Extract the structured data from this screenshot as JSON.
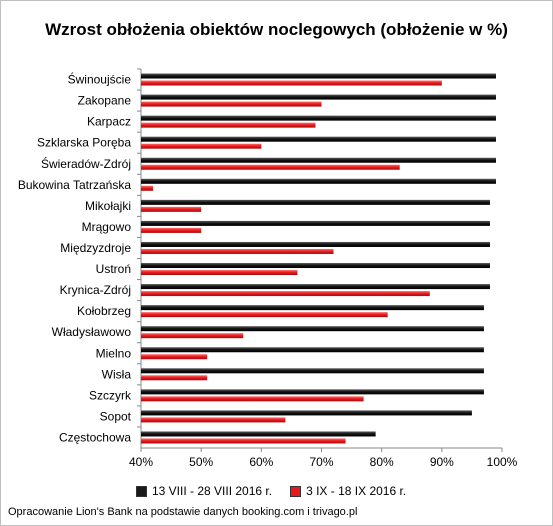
{
  "chart_data": {
    "type": "bar",
    "orientation": "horizontal",
    "title": "Wzrost obłożenia obiektów noclegowych (obłożenie w %)",
    "categories": [
      "Świnoujście",
      "Zakopane",
      "Karpacz",
      "Szklarska Poręba",
      "Świeradów-Zdrój",
      "Bukowina Tatrzańska",
      "Mikołajki",
      "Mrągowo",
      "Międzyzdroje",
      "Ustroń",
      "Krynica-Zdrój",
      "Kołobrzeg",
      "Władysławowo",
      "Mielno",
      "Wisła",
      "Szczyrk",
      "Sopot",
      "Częstochowa"
    ],
    "series": [
      {
        "name": "13 VIII - 28 VIII 2016 r.",
        "color": "#1a1a1a",
        "values": [
          99,
          99,
          99,
          99,
          99,
          99,
          98,
          98,
          98,
          98,
          98,
          97,
          97,
          97,
          97,
          97,
          95,
          79
        ]
      },
      {
        "name": "3 IX - 18 IX 2016 r.",
        "color": "#e8191c",
        "values": [
          90,
          70,
          69,
          60,
          83,
          42,
          50,
          50,
          72,
          66,
          88,
          81,
          57,
          51,
          51,
          77,
          64,
          74
        ]
      }
    ],
    "xlim": [
      40,
      100
    ],
    "xticks": [
      "40%",
      "50%",
      "60%",
      "70%",
      "80%",
      "90%",
      "100%"
    ],
    "grid": false,
    "legend_position": "bottom"
  },
  "source": "Opracowanie Lion's Bank na podstawie danych booking.com i trivago.pl"
}
